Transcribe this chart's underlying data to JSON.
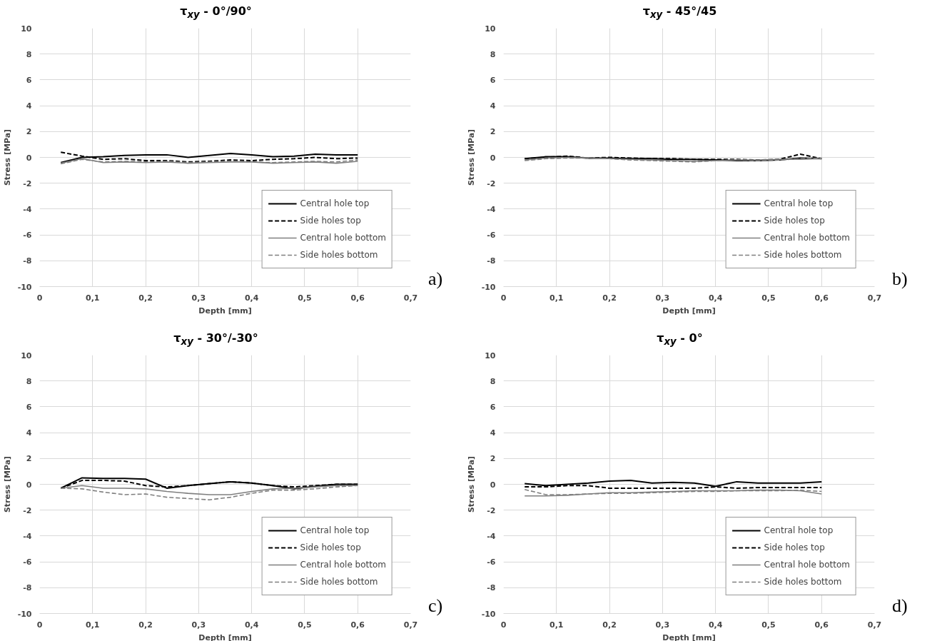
{
  "chart_data": [
    {
      "type": "line",
      "title": "τ$_{xy}$ - 0°/90°",
      "xlabel": "Depth [mm]",
      "ylabel": "Stress [MPa]",
      "annotations": [
        "a)"
      ],
      "grid": true,
      "legend": "bottom right",
      "xlim": [
        0,
        0.7
      ],
      "ylim": [
        -10,
        10
      ],
      "xticks": [
        0,
        {
          "value": 0.1,
          "label": "0,1"
        },
        {
          "value": 0.2,
          "label": "0,2"
        },
        {
          "value": 0.3,
          "label": "0,3"
        },
        {
          "value": 0.4,
          "label": "0,4"
        },
        {
          "value": 0.5,
          "label": "0,5"
        },
        {
          "value": 0.6,
          "label": "0,6"
        },
        {
          "value": 0.7,
          "label": "0,7"
        }
      ],
      "yticks": [
        -10,
        -8,
        -6,
        -4,
        -2,
        0,
        2,
        4,
        6,
        8,
        10
      ],
      "x": [
        0.04,
        0.08,
        0.12,
        0.16,
        0.2,
        0.24,
        0.28,
        0.32,
        0.36,
        0.4,
        0.44,
        0.48,
        0.52,
        0.56,
        0.6
      ],
      "series": [
        {
          "name": "Central hole top",
          "color": "#000000",
          "line_style": "solid",
          "values": [
            -0.4,
            0.0,
            0.05,
            0.15,
            0.2,
            0.2,
            0.0,
            0.15,
            0.3,
            0.2,
            0.05,
            0.1,
            0.25,
            0.2,
            0.2
          ]
        },
        {
          "name": "Side holes top",
          "color": "#000000",
          "line_style": "dashed",
          "values": [
            0.4,
            0.1,
            -0.15,
            -0.1,
            -0.25,
            -0.25,
            -0.35,
            -0.3,
            -0.2,
            -0.25,
            -0.15,
            -0.1,
            0.0,
            -0.1,
            -0.05
          ]
        },
        {
          "name": "Central hole bottom",
          "color": "#7f7f7f",
          "line_style": "solid",
          "values": [
            -0.45,
            -0.1,
            -0.4,
            -0.35,
            -0.4,
            -0.35,
            -0.45,
            -0.4,
            -0.35,
            -0.35,
            -0.45,
            -0.4,
            -0.35,
            -0.45,
            -0.3
          ]
        },
        {
          "name": "Side holes bottom",
          "color": "#7f7f7f",
          "line_style": "dashed",
          "values": [
            -0.5,
            -0.15,
            -0.35,
            -0.3,
            -0.35,
            -0.3,
            -0.4,
            -0.35,
            -0.3,
            -0.35,
            -0.4,
            -0.35,
            -0.3,
            -0.35,
            -0.2
          ]
        }
      ]
    },
    {
      "type": "line",
      "title": "τ$_{xy}$ - 45°/45",
      "xlabel": "Depth [mm]",
      "ylabel": "Stress [MPa]",
      "annotations": [
        "b)"
      ],
      "grid": true,
      "legend": "bottom right",
      "xlim": [
        0,
        0.7
      ],
      "ylim": [
        -10,
        10
      ],
      "xticks": [
        0,
        {
          "value": 0.1,
          "label": "0,1"
        },
        {
          "value": 0.2,
          "label": "0,2"
        },
        {
          "value": 0.3,
          "label": "0,3"
        },
        {
          "value": 0.4,
          "label": "0,4"
        },
        {
          "value": 0.5,
          "label": "0,5"
        },
        {
          "value": 0.6,
          "label": "0,6"
        },
        {
          "value": 0.7,
          "label": "0,7"
        }
      ],
      "yticks": [
        -10,
        -8,
        -6,
        -4,
        -2,
        0,
        2,
        4,
        6,
        8,
        10
      ],
      "x": [
        0.04,
        0.08,
        0.12,
        0.16,
        0.2,
        0.24,
        0.28,
        0.32,
        0.36,
        0.4,
        0.44,
        0.48,
        0.52,
        0.56,
        0.6
      ],
      "series": [
        {
          "name": "Central hole top",
          "color": "#000000",
          "line_style": "solid",
          "values": [
            -0.1,
            0.05,
            0.05,
            -0.05,
            -0.05,
            -0.1,
            -0.1,
            -0.15,
            -0.15,
            -0.2,
            -0.25,
            -0.25,
            -0.2,
            -0.05,
            -0.1
          ]
        },
        {
          "name": "Side holes top",
          "color": "#000000",
          "line_style": "dashed",
          "values": [
            -0.1,
            0.0,
            0.1,
            -0.05,
            0.0,
            -0.05,
            -0.1,
            -0.1,
            -0.15,
            -0.15,
            -0.15,
            -0.2,
            -0.15,
            0.25,
            -0.1
          ]
        },
        {
          "name": "Central hole bottom",
          "color": "#7f7f7f",
          "line_style": "solid",
          "values": [
            -0.2,
            -0.05,
            0.0,
            -0.05,
            -0.1,
            -0.15,
            -0.2,
            -0.25,
            -0.3,
            -0.25,
            -0.2,
            -0.2,
            -0.15,
            -0.15,
            -0.1
          ]
        },
        {
          "name": "Side holes bottom",
          "color": "#7f7f7f",
          "line_style": "dashed",
          "values": [
            -0.25,
            -0.1,
            -0.05,
            -0.05,
            -0.1,
            -0.2,
            -0.25,
            -0.3,
            -0.35,
            -0.25,
            -0.2,
            -0.25,
            -0.2,
            -0.1,
            -0.05
          ]
        }
      ]
    },
    {
      "type": "line",
      "title": "τ$_{xy}$ - 30°/-30°",
      "xlabel": "Depth [mm]",
      "ylabel": "Stress [MPa]",
      "annotations": [
        "c)"
      ],
      "grid": true,
      "legend": "bottom right",
      "xlim": [
        0,
        0.7
      ],
      "ylim": [
        -10,
        10
      ],
      "xticks": [
        0,
        {
          "value": 0.1,
          "label": "0,1"
        },
        {
          "value": 0.2,
          "label": "0,2"
        },
        {
          "value": 0.3,
          "label": "0,3"
        },
        {
          "value": 0.4,
          "label": "0,4"
        },
        {
          "value": 0.5,
          "label": "0,5"
        },
        {
          "value": 0.6,
          "label": "0,6"
        },
        {
          "value": 0.7,
          "label": "0,7"
        }
      ],
      "yticks": [
        -10,
        -8,
        -6,
        -4,
        -2,
        0,
        2,
        4,
        6,
        8,
        10
      ],
      "x": [
        0.04,
        0.08,
        0.12,
        0.16,
        0.2,
        0.24,
        0.28,
        0.32,
        0.36,
        0.4,
        0.44,
        0.48,
        0.52,
        0.56,
        0.6
      ],
      "series": [
        {
          "name": "Central hole top",
          "color": "#000000",
          "line_style": "solid",
          "values": [
            -0.3,
            0.5,
            0.45,
            0.45,
            0.4,
            -0.3,
            -0.1,
            0.05,
            0.2,
            0.1,
            -0.1,
            -0.35,
            -0.15,
            0.0,
            0.0
          ]
        },
        {
          "name": "Side holes top",
          "color": "#000000",
          "line_style": "dashed",
          "values": [
            -0.3,
            0.3,
            0.3,
            0.25,
            -0.1,
            -0.2,
            -0.1,
            0.05,
            0.2,
            0.1,
            -0.1,
            -0.2,
            -0.1,
            0.0,
            0.0
          ]
        },
        {
          "name": "Central hole bottom",
          "color": "#7f7f7f",
          "line_style": "solid",
          "values": [
            -0.3,
            -0.1,
            -0.3,
            -0.3,
            -0.35,
            -0.55,
            -0.7,
            -0.8,
            -0.8,
            -0.55,
            -0.35,
            -0.3,
            -0.2,
            -0.1,
            -0.1
          ]
        },
        {
          "name": "Side holes bottom",
          "color": "#7f7f7f",
          "line_style": "dashed",
          "values": [
            -0.3,
            -0.35,
            -0.6,
            -0.8,
            -0.75,
            -1.0,
            -1.1,
            -1.2,
            -1.0,
            -0.7,
            -0.45,
            -0.45,
            -0.35,
            -0.2,
            -0.1
          ]
        }
      ]
    },
    {
      "type": "line",
      "title": "τ$_{xy}$ - 0°",
      "xlabel": "Depth [mm]",
      "ylabel": "Stress [MPa]",
      "annotations": [
        "d)"
      ],
      "grid": true,
      "legend": "bottom right",
      "xlim": [
        0,
        0.7
      ],
      "ylim": [
        -10,
        10
      ],
      "xticks": [
        0,
        {
          "value": 0.1,
          "label": "0,1"
        },
        {
          "value": 0.2,
          "label": "0,2"
        },
        {
          "value": 0.3,
          "label": "0,3"
        },
        {
          "value": 0.4,
          "label": "0,4"
        },
        {
          "value": 0.5,
          "label": "0,5"
        },
        {
          "value": 0.6,
          "label": "0,6"
        },
        {
          "value": 0.7,
          "label": "0,7"
        }
      ],
      "yticks": [
        -10,
        -8,
        -6,
        -4,
        -2,
        0,
        2,
        4,
        6,
        8,
        10
      ],
      "x": [
        0.04,
        0.08,
        0.12,
        0.16,
        0.2,
        0.24,
        0.28,
        0.32,
        0.36,
        0.4,
        0.44,
        0.48,
        0.52,
        0.56,
        0.6
      ],
      "series": [
        {
          "name": "Central hole top",
          "color": "#000000",
          "line_style": "solid",
          "values": [
            0.05,
            -0.1,
            0.0,
            0.1,
            0.25,
            0.3,
            0.1,
            0.15,
            0.1,
            -0.15,
            0.2,
            0.1,
            0.1,
            0.1,
            0.2
          ]
        },
        {
          "name": "Side holes top",
          "color": "#000000",
          "line_style": "dashed",
          "values": [
            -0.2,
            -0.2,
            -0.1,
            -0.1,
            -0.3,
            -0.3,
            -0.3,
            -0.3,
            -0.3,
            -0.2,
            -0.3,
            -0.25,
            -0.25,
            -0.25,
            -0.25
          ]
        },
        {
          "name": "Central hole bottom",
          "color": "#7f7f7f",
          "line_style": "solid",
          "values": [
            -0.9,
            -0.9,
            -0.85,
            -0.75,
            -0.65,
            -0.65,
            -0.6,
            -0.55,
            -0.5,
            -0.5,
            -0.5,
            -0.45,
            -0.45,
            -0.5,
            -0.75
          ]
        },
        {
          "name": "Side holes bottom",
          "color": "#7f7f7f",
          "line_style": "dashed",
          "values": [
            -0.4,
            -0.8,
            -0.8,
            -0.75,
            -0.7,
            -0.7,
            -0.65,
            -0.6,
            -0.55,
            -0.55,
            -0.5,
            -0.5,
            -0.5,
            -0.45,
            -0.55
          ]
        }
      ]
    }
  ]
}
